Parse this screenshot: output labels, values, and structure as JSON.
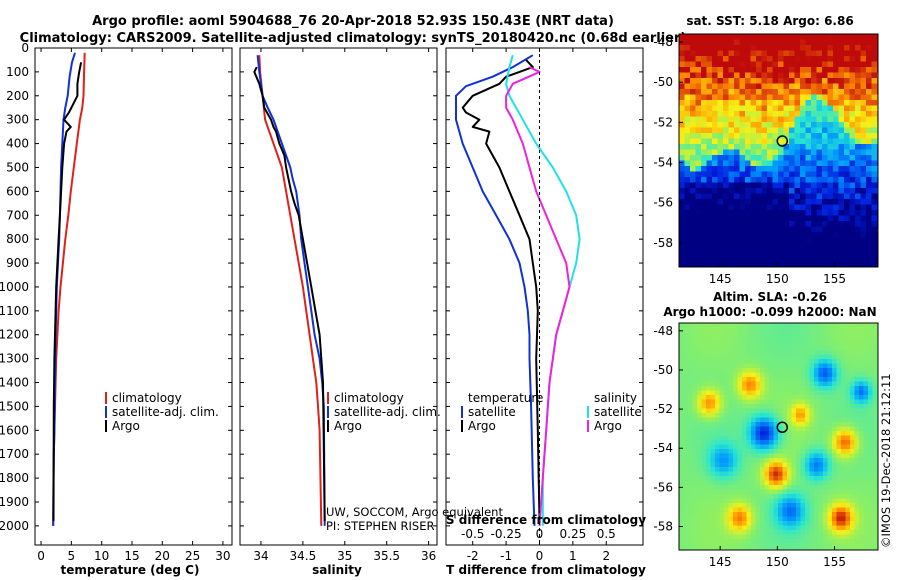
{
  "title_line1": "Argo profile: aoml 5904688_76 20-Apr-2018 52.93S 150.43E (NRT data)",
  "title_line2": "Climatology: CARS2009. Satellite-adjusted climatology: synTS_20180420.nc (0.68d earlier)",
  "pressure_ticks": [
    "0",
    "100",
    "200",
    "300",
    "400",
    "500",
    "600",
    "700",
    "800",
    "900",
    "1000",
    "1100",
    "1200",
    "1300",
    "1400",
    "1500",
    "1600",
    "1700",
    "1800",
    "1900",
    "2000"
  ],
  "colors": {
    "climatology": "#e0201b",
    "satellite": "#1030d8",
    "argo": "#000000",
    "sal_satellite": "#20e0e8",
    "sal_argo": "#f020e0"
  },
  "chart_data": [
    {
      "type": "line",
      "xlabel": "temperature (deg C)",
      "ylabel": "pressure",
      "xlim": [
        -1,
        31.5
      ],
      "ylim": [
        2080,
        0
      ],
      "xticks": [
        "0",
        "5",
        "10",
        "15",
        "20",
        "25",
        "30"
      ],
      "legend": [
        "climatology",
        "satellite-adj. clim.",
        "Argo"
      ],
      "series": [
        {
          "name": "climatology",
          "x": [
            7.2,
            7.1,
            7.0,
            6.8,
            6.4,
            5.9,
            5.4,
            4.9,
            4.5,
            4.0,
            3.6,
            3.2,
            2.9,
            2.7,
            2.5,
            2.4,
            2.3,
            2.2,
            2.1,
            2.05,
            2.0
          ],
          "y": [
            20,
            100,
            200,
            250,
            300,
            400,
            500,
            600,
            700,
            800,
            900,
            1000,
            1100,
            1200,
            1300,
            1400,
            1500,
            1600,
            1700,
            1800,
            2000
          ]
        },
        {
          "name": "satellite-adj. clim.",
          "x": [
            5.6,
            5.1,
            4.7,
            4.4,
            4.0,
            3.7,
            3.5,
            3.3,
            3.2,
            3.1,
            3.0,
            2.8,
            2.6,
            2.4,
            2.3,
            2.2,
            2.1,
            2.05,
            2.0
          ],
          "y": [
            20,
            60,
            120,
            200,
            250,
            300,
            400,
            500,
            600,
            700,
            800,
            900,
            1000,
            1200,
            1400,
            1600,
            1700,
            1800,
            2000
          ]
        },
        {
          "name": "Argo",
          "x": [
            6.6,
            6.3,
            6.0,
            6.0,
            5.0,
            4.6,
            3.8,
            4.9,
            4.2,
            3.8,
            3.5,
            3.3,
            3.1,
            2.9,
            2.7,
            2.5,
            2.4,
            2.3,
            2.2,
            2.1,
            2.05
          ],
          "y": [
            60,
            100,
            150,
            200,
            250,
            270,
            300,
            330,
            350,
            400,
            500,
            600,
            700,
            800,
            900,
            1000,
            1100,
            1200,
            1300,
            1500,
            1980
          ]
        }
      ]
    },
    {
      "type": "line",
      "xlabel": "salinity",
      "xlim": [
        33.75,
        36.1
      ],
      "ylim": [
        2080,
        0
      ],
      "xticks": [
        "34",
        "34.5",
        "35",
        "35.5",
        "36"
      ],
      "legend": [
        "climatology",
        "satellite-adj. clim.",
        "Argo"
      ],
      "series": [
        {
          "name": "climatology",
          "x": [
            33.98,
            33.99,
            34.02,
            34.05,
            34.1,
            34.15,
            34.2,
            34.25,
            34.3,
            34.35,
            34.4,
            34.45,
            34.5,
            34.54,
            34.58,
            34.62,
            34.66,
            34.68,
            34.7,
            34.72
          ],
          "y": [
            30,
            100,
            200,
            300,
            350,
            400,
            450,
            500,
            600,
            700,
            800,
            900,
            1000,
            1100,
            1200,
            1300,
            1400,
            1500,
            1600,
            2000
          ]
        },
        {
          "name": "satellite-adj. clim.",
          "x": [
            33.96,
            33.98,
            34.02,
            34.08,
            34.15,
            34.2,
            34.25,
            34.3,
            34.35,
            34.38,
            34.42,
            34.46,
            34.48,
            34.52,
            34.56,
            34.6,
            34.64,
            34.7,
            34.73,
            34.75,
            34.76
          ],
          "y": [
            30,
            100,
            200,
            250,
            300,
            350,
            400,
            450,
            500,
            550,
            600,
            700,
            800,
            900,
            1000,
            1100,
            1200,
            1300,
            1400,
            1500,
            2000
          ]
        },
        {
          "name": "Argo",
          "x": [
            33.95,
            33.92,
            33.98,
            34.02,
            34.04,
            34.12,
            34.15,
            34.18,
            34.22,
            34.28,
            34.3,
            34.33,
            34.36,
            34.4,
            34.45,
            34.5,
            34.55,
            34.6,
            34.65,
            34.7,
            34.74,
            34.76
          ],
          "y": [
            80,
            100,
            150,
            200,
            250,
            300,
            330,
            350,
            400,
            450,
            500,
            550,
            600,
            650,
            700,
            800,
            900,
            1000,
            1100,
            1200,
            1400,
            1980
          ]
        }
      ]
    },
    {
      "type": "line",
      "xlabel": "T difference from climatology",
      "xlabel_top": "S difference from climatology",
      "xlim": [
        -2.8,
        3.1
      ],
      "ylim": [
        2080,
        0
      ],
      "xticks": [
        "-2",
        "-1",
        "0",
        "1",
        "2"
      ],
      "top_ticks": [
        "-0.5",
        "-0.25",
        "0",
        "0.25",
        "0.5"
      ],
      "top_scale": 4,
      "legend_left_title": "temperature",
      "legend_left": [
        "satellite",
        "Argo"
      ],
      "legend_right_title": "salinity",
      "legend_right": [
        "satellite",
        "Argo"
      ],
      "series": [
        {
          "name": "T satellite",
          "x": [
            -0.2,
            -0.8,
            -1.4,
            -2.2,
            -2.5,
            -2.5,
            -2.3,
            -2.0,
            -1.7,
            -1.3,
            -0.9,
            -0.6,
            -0.45,
            -0.35,
            -0.3,
            -0.3,
            -0.25,
            -0.2,
            -0.15
          ],
          "y": [
            30,
            80,
            120,
            160,
            200,
            300,
            400,
            500,
            600,
            700,
            800,
            900,
            1000,
            1100,
            1200,
            1300,
            1500,
            1800,
            2000
          ]
        },
        {
          "name": "T Argo",
          "x": [
            -0.4,
            -0.2,
            -0.6,
            -1.0,
            -1.2,
            -2.0,
            -2.3,
            -2.2,
            -1.8,
            -2.0,
            -1.5,
            -1.6,
            -1.2,
            -0.9,
            -0.6,
            -0.3,
            -0.2,
            -0.1,
            -0.05,
            -0.1,
            -0.05,
            0.0
          ],
          "y": [
            50,
            80,
            100,
            120,
            150,
            200,
            250,
            270,
            300,
            330,
            350,
            400,
            500,
            600,
            700,
            800,
            900,
            1000,
            1100,
            1300,
            1600,
            1980
          ]
        },
        {
          "name": "S satellite",
          "x": [
            -0.8,
            -0.9,
            -1.0,
            -0.9,
            -0.7,
            -0.5,
            -0.1,
            0.4,
            0.8,
            1.1,
            1.2,
            1.1,
            0.9,
            0.7,
            0.5,
            0.3,
            0.2,
            0.1,
            0.1
          ],
          "y": [
            30,
            80,
            150,
            200,
            250,
            300,
            400,
            500,
            600,
            700,
            800,
            900,
            1000,
            1100,
            1200,
            1400,
            1600,
            1800,
            2000
          ]
        },
        {
          "name": "S Argo",
          "x": [
            -0.3,
            0.0,
            -0.8,
            -1.0,
            -1.0,
            -0.8,
            -0.5,
            -0.3,
            -0.1,
            0.2,
            0.5,
            0.8,
            0.9,
            0.7,
            0.5,
            0.3,
            0.2,
            0.1,
            0.0
          ],
          "y": [
            80,
            100,
            150,
            200,
            250,
            300,
            400,
            500,
            600,
            700,
            800,
            900,
            1000,
            1100,
            1200,
            1400,
            1600,
            1800,
            2000
          ]
        }
      ]
    },
    {
      "type": "heatmap",
      "title": "sat. SST: 5.18 Argo: 6.86",
      "xticks": [
        "145",
        "150",
        "155"
      ],
      "yticks": [
        "-48",
        "-50",
        "-52",
        "-54",
        "-56",
        "-58"
      ]
    },
    {
      "type": "heatmap",
      "title_line1": "Altim. SLA: -0.26",
      "title_line2": "Argo h1000: -0.099 h2000: NaN",
      "xticks": [
        "145",
        "150",
        "155"
      ],
      "yticks": [
        "-48",
        "-50",
        "-52",
        "-54",
        "-56",
        "-58"
      ]
    }
  ],
  "credit_line1": "UW, SOCCOM, Argo equivalent",
  "credit_line2": "PI: STEPHEN RISER",
  "imos_stamp": "©IMOS 19-Dec-2018 21:12:11"
}
